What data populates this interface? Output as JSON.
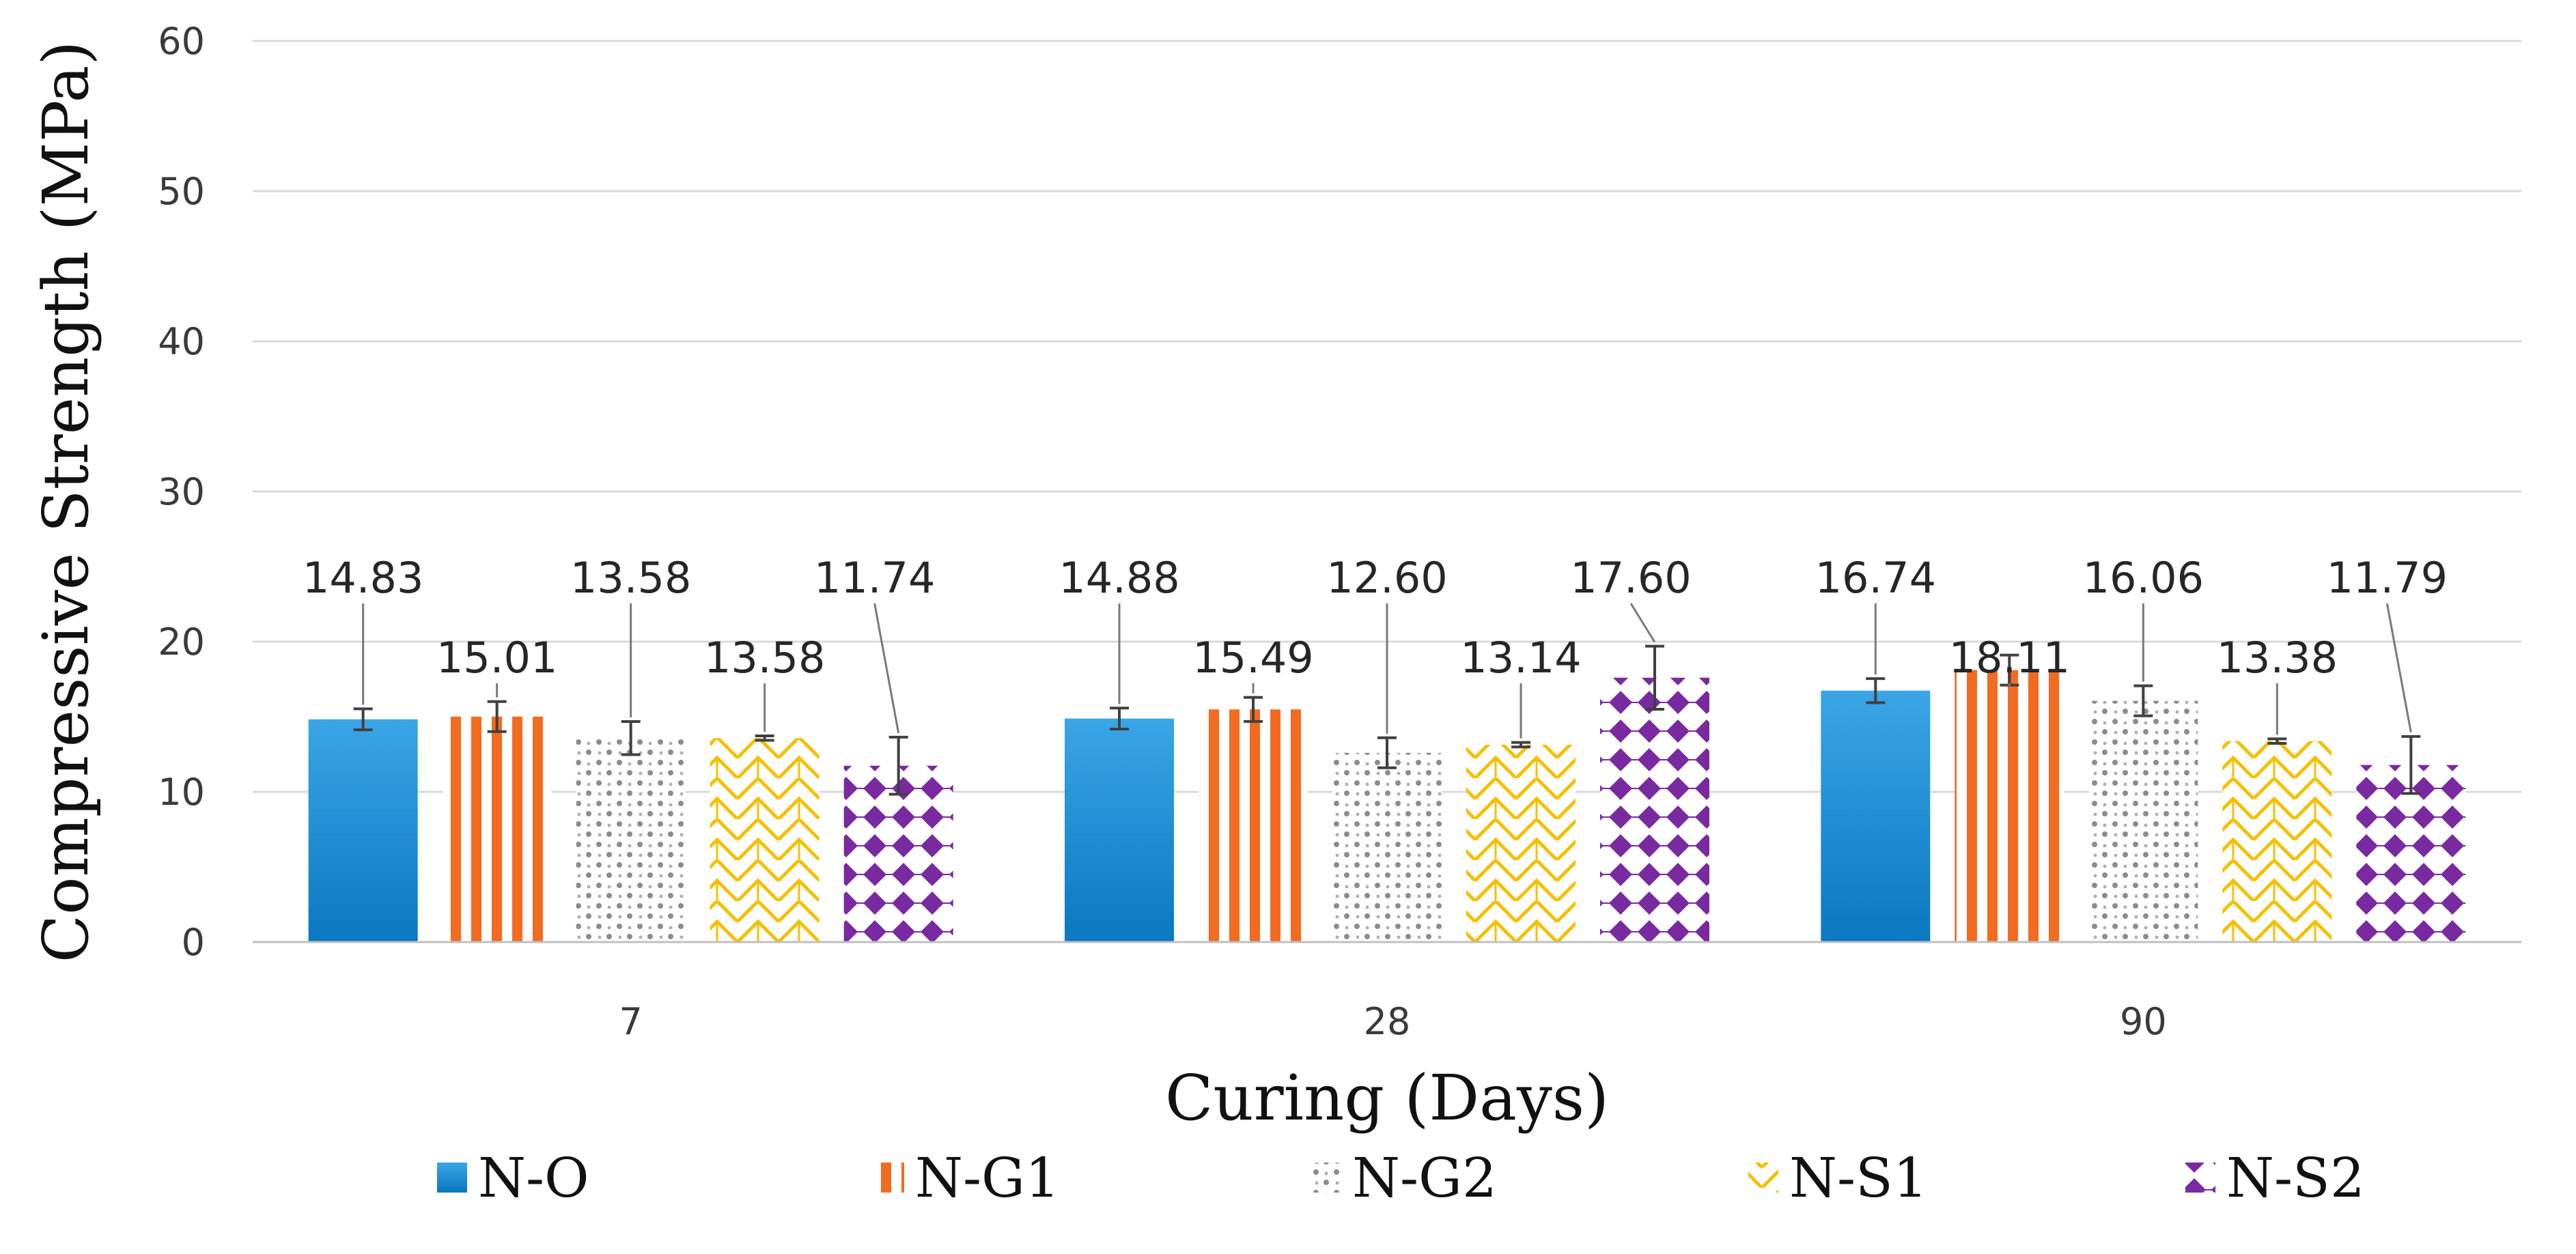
{
  "chart_data": {
    "type": "bar",
    "xlabel": "Curing (Days)",
    "ylabel": "Compressive Strength (MPa)",
    "ylim": [
      0,
      60
    ],
    "yticks": [
      0,
      10,
      20,
      30,
      40,
      50,
      60
    ],
    "grid": true,
    "legend_position": "bottom",
    "categories": [
      "7",
      "28",
      "90"
    ],
    "series": [
      {
        "name": "N-O",
        "values": [
          14.83,
          14.88,
          16.74
        ],
        "labels": [
          "14.83",
          "14.88",
          "16.74"
        ],
        "errors": [
          0.7,
          0.7,
          0.8
        ],
        "color": "#1b8fd6",
        "pattern": "solid"
      },
      {
        "name": "N-G1",
        "values": [
          15.01,
          15.49,
          18.11
        ],
        "labels": [
          "15.01",
          "15.49",
          "18.11"
        ],
        "errors": [
          1.0,
          0.8,
          1.0
        ],
        "color": "#f26b21",
        "pattern": "vertical-stripes"
      },
      {
        "name": "N-G2",
        "values": [
          13.58,
          12.6,
          16.06
        ],
        "labels": [
          "13.58",
          "12.60",
          "16.06"
        ],
        "errors": [
          1.1,
          1.0,
          1.0
        ],
        "color": "#8c8c8c",
        "pattern": "dots"
      },
      {
        "name": "N-S1",
        "values": [
          13.58,
          13.14,
          13.38
        ],
        "labels": [
          "13.58",
          "13.14",
          "13.38"
        ],
        "errors": [
          0.15,
          0.15,
          0.15
        ],
        "color": "#f5c000",
        "pattern": "zigzag"
      },
      {
        "name": "N-S2",
        "values": [
          11.74,
          17.6,
          11.79
        ],
        "labels": [
          "11.74",
          "17.60",
          "11.79"
        ],
        "errors": [
          1.9,
          2.1,
          1.9
        ],
        "color": "#7a2aa0",
        "pattern": "diamonds"
      }
    ]
  }
}
